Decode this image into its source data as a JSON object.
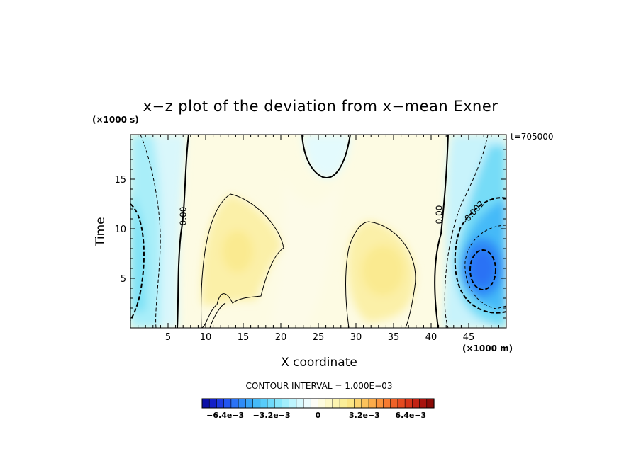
{
  "chart_data": {
    "type": "heatmap",
    "title": "x−z plot of the deviation from x−mean Exner",
    "xlabel": "X coordinate",
    "ylabel": "Time",
    "x_unit_label": "(×1000 m)",
    "y_unit_label": "(×1000 s)",
    "annotation": "t=705000",
    "xlim": [
      0,
      50
    ],
    "ylim": [
      0,
      19.5
    ],
    "x_ticks": [
      "5",
      "10",
      "15",
      "20",
      "25",
      "30",
      "35",
      "40",
      "45"
    ],
    "y_ticks": [
      "5",
      "10",
      "15"
    ],
    "contour_interval_text": "CONTOUR INTERVAL = 1.000E−03",
    "contour_labels": [
      "0.00",
      "0.00",
      "−0.002"
    ],
    "colorbar": {
      "range": [
        -0.008,
        0.008
      ],
      "tick_labels": [
        "−6.4e−3",
        "−3.2e−3",
        "0",
        "3.2e−3",
        "6.4e−3"
      ],
      "tick_values": [
        -0.0064,
        -0.0032,
        0,
        0.0032,
        0.0064
      ],
      "colors": [
        "#0a0fa6",
        "#1320c8",
        "#1c3ae0",
        "#2155f0",
        "#2a72f5",
        "#2f8cf7",
        "#37a4f7",
        "#45baf8",
        "#58ccf9",
        "#6fdafa",
        "#88e6fb",
        "#a2eefc",
        "#bdf4fd",
        "#d6f8fd",
        "#ecfbfd",
        "#fcfcf6",
        "#fdfbe0",
        "#fdf8c8",
        "#fcf4b0",
        "#fbee98",
        "#fbe584",
        "#fbd46f",
        "#fbc25c",
        "#fbab4a",
        "#fa933c",
        "#f67a30",
        "#ef6227",
        "#e44a1f",
        "#d53418",
        "#c22213",
        "#a8130d",
        "#8a0a07"
      ]
    },
    "series": []
  }
}
